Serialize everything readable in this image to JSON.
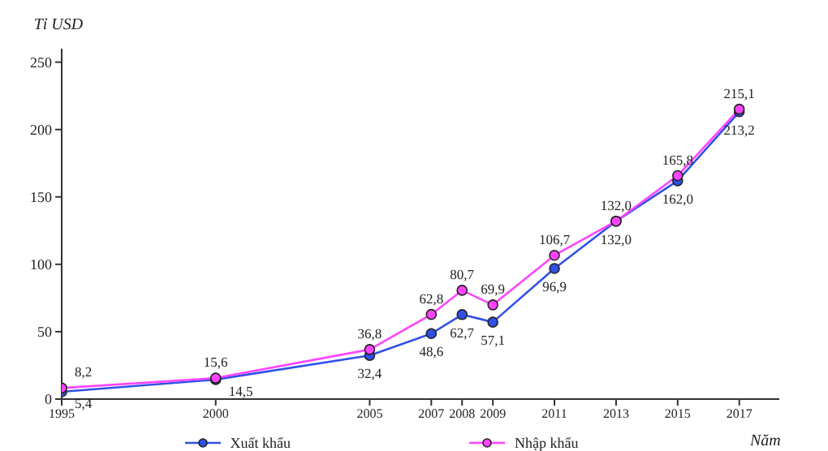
{
  "chart_data": {
    "type": "line",
    "ylabel": "Tỉ USD",
    "xlabel": "Năm",
    "x": [
      1995,
      2000,
      2005,
      2007,
      2008,
      2009,
      2011,
      2013,
      2015,
      2017
    ],
    "series": [
      {
        "name": "Xuất khẩu",
        "color": "#3050e8",
        "values": [
          5.4,
          14.5,
          32.4,
          48.6,
          62.7,
          57.1,
          96.9,
          132.0,
          162.0,
          213.2
        ],
        "value_labels": [
          "5,4",
          "14,5",
          "32,4",
          "48,6",
          "62,7",
          "57,1",
          "96,9",
          "132,0",
          "162,0",
          "213,2"
        ]
      },
      {
        "name": "Nhập khẩu",
        "color": "#ff44ff",
        "values": [
          8.2,
          15.6,
          36.8,
          62.8,
          80.7,
          69.9,
          106.7,
          132.0,
          165.8,
          215.1
        ],
        "value_labels": [
          "8,2",
          "15,6",
          "36,8",
          "62,8",
          "80,7",
          "69,9",
          "106,7",
          "132,0",
          "165,8",
          "215,1"
        ]
      }
    ],
    "xlim": [
      1995,
      2018.3
    ],
    "xticks": [
      1995,
      2000,
      2005,
      2007,
      2008,
      2009,
      2011,
      2013,
      2015,
      2017
    ],
    "ylim": [
      0,
      260
    ],
    "yticks": [
      0,
      50,
      100,
      150,
      200,
      250
    ],
    "grid": false,
    "legend": "bottom",
    "marker": "circle",
    "line_style": "solid"
  }
}
